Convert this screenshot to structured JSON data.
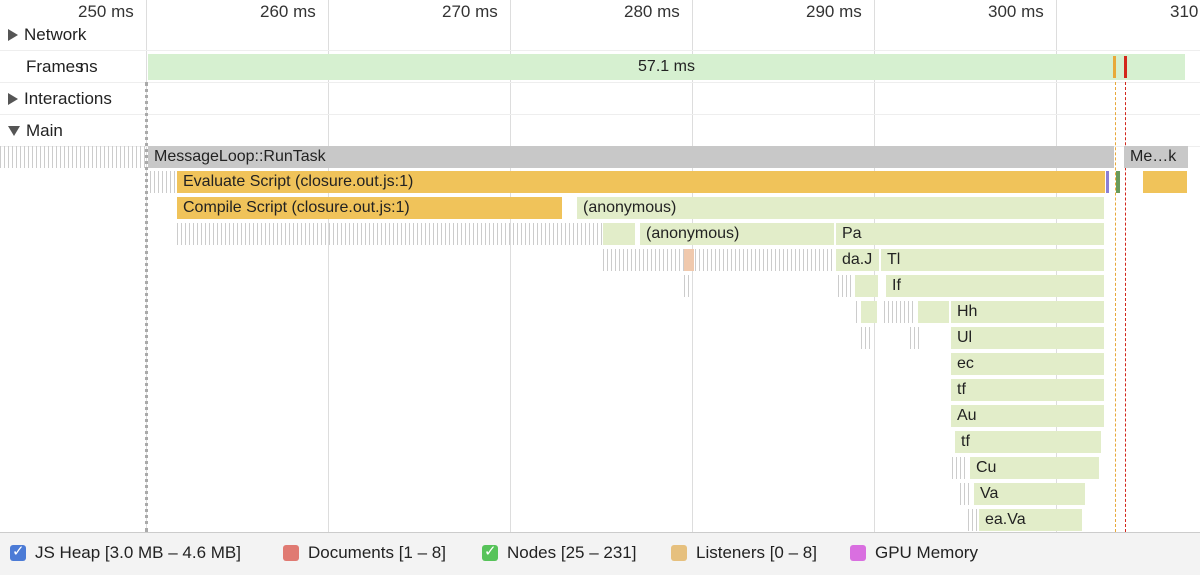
{
  "ruler": {
    "ticks": [
      "250 ms",
      "260 ms",
      "270 ms",
      "280 ms",
      "290 ms",
      "300 ms",
      "310"
    ]
  },
  "tracks": {
    "network": "Network",
    "frames": "Frames",
    "frames_overlap": "ns",
    "interactions": "Interactions",
    "main": "Main"
  },
  "frames_bar": {
    "duration": "57.1 ms"
  },
  "flame": {
    "run_task": "MessageLoop::RunTask",
    "run_task_2": "Me…k",
    "evaluate": "Evaluate Script (closure.out.js:1)",
    "compile": "Compile Script (closure.out.js:1)",
    "anon1": "(anonymous)",
    "anon2": "(anonymous)",
    "pa": "Pa",
    "daj": "da.J",
    "tl": "Tl",
    "if": "If",
    "hh": "Hh",
    "ul": "Ul",
    "ec": "ec",
    "tf1": "tf",
    "au": "Au",
    "tf2": "tf",
    "cu": "Cu",
    "va": "Va",
    "eava": "ea.Va"
  },
  "legend": [
    {
      "label": "JS Heap [3.0 MB – 4.6 MB]",
      "color": "#4c7bd6",
      "checked": true
    },
    {
      "label": "Documents [1 – 8]",
      "color": "#e07a72",
      "checked": false
    },
    {
      "label": "Nodes [25 – 231]",
      "color": "#57c35a",
      "checked": true
    },
    {
      "label": "Listeners [0 – 8]",
      "color": "#e6c07e",
      "checked": false
    },
    {
      "label": "GPU Memory",
      "color": "#d96fe0",
      "checked": false
    }
  ]
}
